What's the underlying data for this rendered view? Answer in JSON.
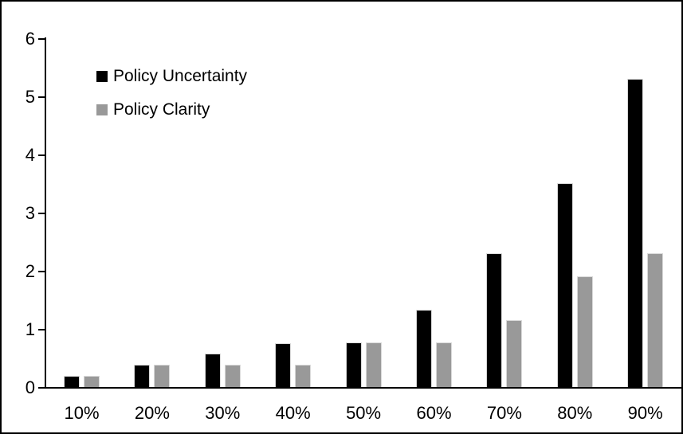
{
  "chart_data": {
    "type": "bar",
    "title": "",
    "xlabel": "",
    "ylabel": "",
    "categories": [
      "10%",
      "20%",
      "30%",
      "40%",
      "50%",
      "60%",
      "70%",
      "80%",
      "90%"
    ],
    "series": [
      {
        "name": "Policy Uncertainty",
        "color": "#000000",
        "values": [
          0.19,
          0.38,
          0.57,
          0.76,
          0.77,
          1.33,
          2.3,
          3.5,
          5.3
        ]
      },
      {
        "name": "Policy Clarity",
        "color": "#999999",
        "values": [
          0.19,
          0.38,
          0.38,
          0.38,
          0.77,
          0.77,
          1.15,
          1.9,
          2.3
        ]
      }
    ],
    "ylim": [
      0,
      6
    ],
    "yticks": [
      0,
      1,
      2,
      3,
      4,
      5,
      6
    ],
    "grid": false,
    "legend_position": "top-left",
    "bar_border_color": "#d9d9d9",
    "axis_color": "#000000",
    "background_color": "#ffffff"
  }
}
